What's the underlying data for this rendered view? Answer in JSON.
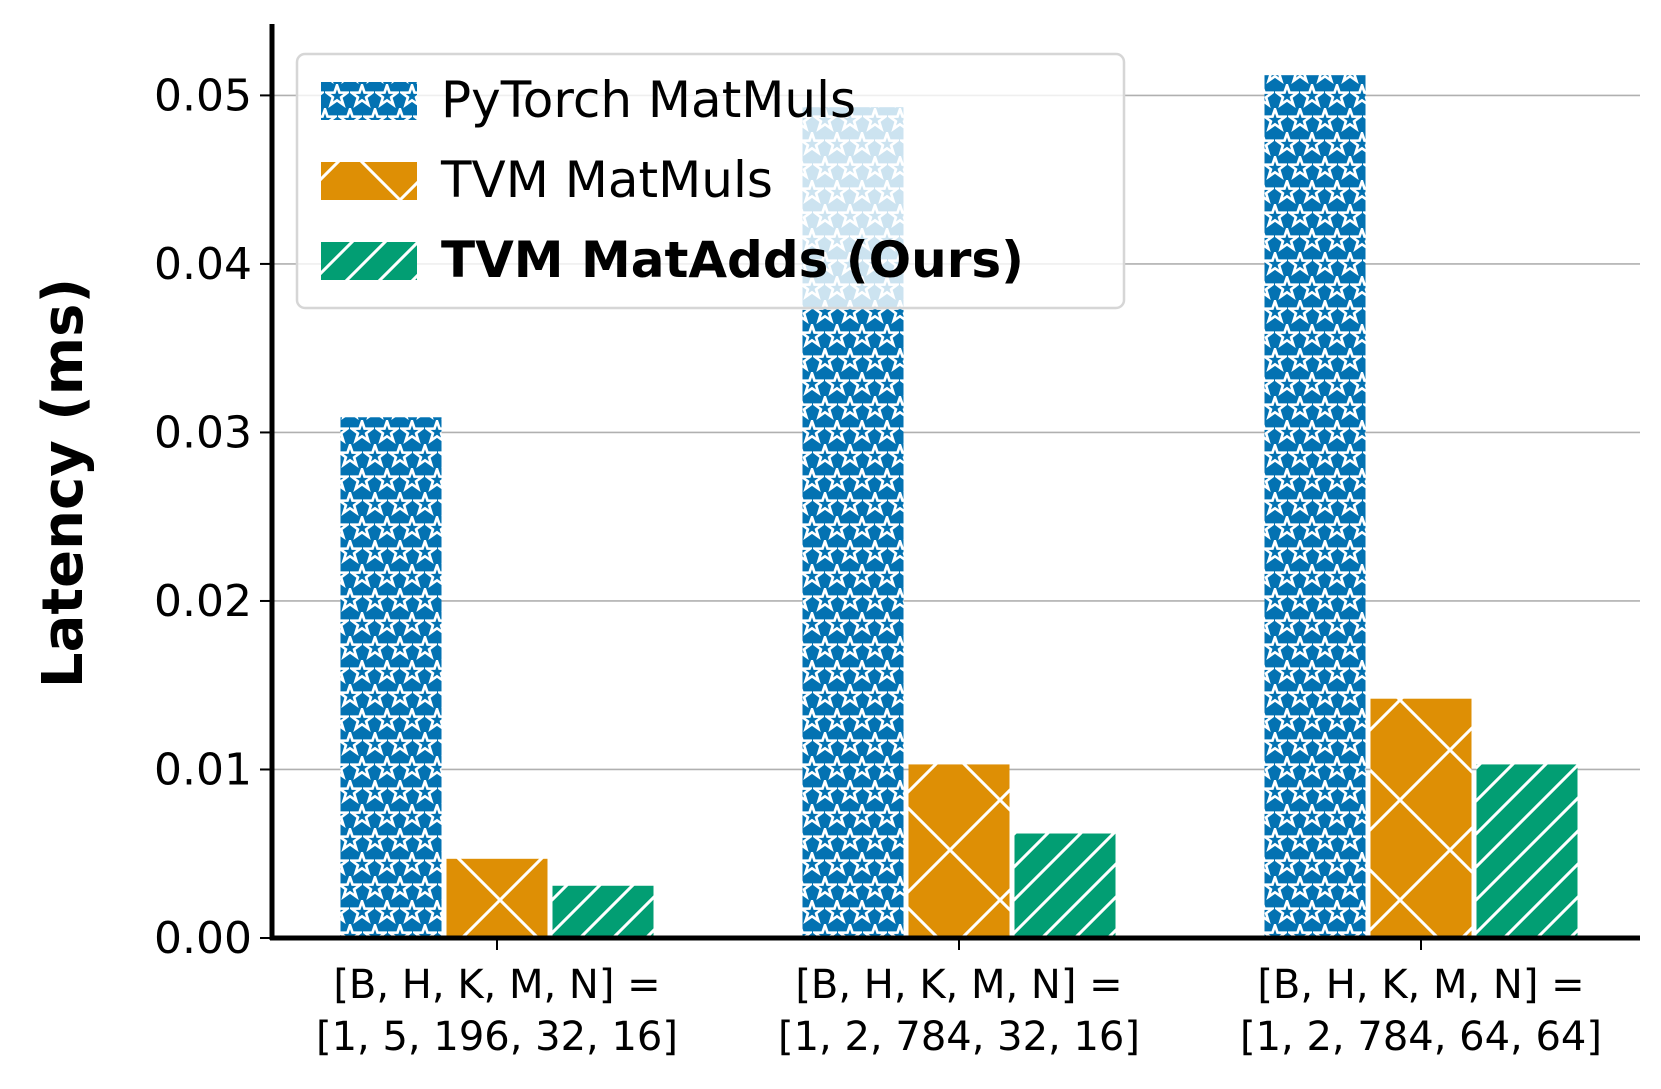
{
  "chart_data": {
    "type": "bar",
    "title": "",
    "xlabel": "",
    "ylabel": "Latency (ms)",
    "ylim": [
      0,
      0.054
    ],
    "yticks": [
      "0.00",
      "0.01",
      "0.02",
      "0.03",
      "0.04",
      "0.05"
    ],
    "ytick_values": [
      0,
      0.01,
      0.02,
      0.03,
      0.04,
      0.05
    ],
    "grid": "y-major",
    "legend_position": "top-left",
    "categories": [
      [
        "[B, H, K, M, N] =",
        "[1, 5, 196, 32, 16]"
      ],
      [
        "[B, H, K, M, N] =",
        "[1, 2, 784, 32, 16]"
      ],
      [
        "[B, H, K, M, N] =",
        "[1, 2, 784, 64, 64]"
      ]
    ],
    "series": [
      {
        "name": "PyTorch MatMuls",
        "values": [
          0.0309,
          0.0493,
          0.0512
        ],
        "color": "#0372b2",
        "hatch": "stars",
        "label_bold": false
      },
      {
        "name": "TVM MatMuls",
        "values": [
          0.0047,
          0.0103,
          0.0142
        ],
        "color": "#de8f05",
        "hatch": "cross",
        "label_bold": false
      },
      {
        "name": "TVM MatAdds (Ours)",
        "values": [
          0.0031,
          0.0062,
          0.0103
        ],
        "color": "#029e73",
        "hatch": "diagonal",
        "label_bold": true
      }
    ]
  }
}
